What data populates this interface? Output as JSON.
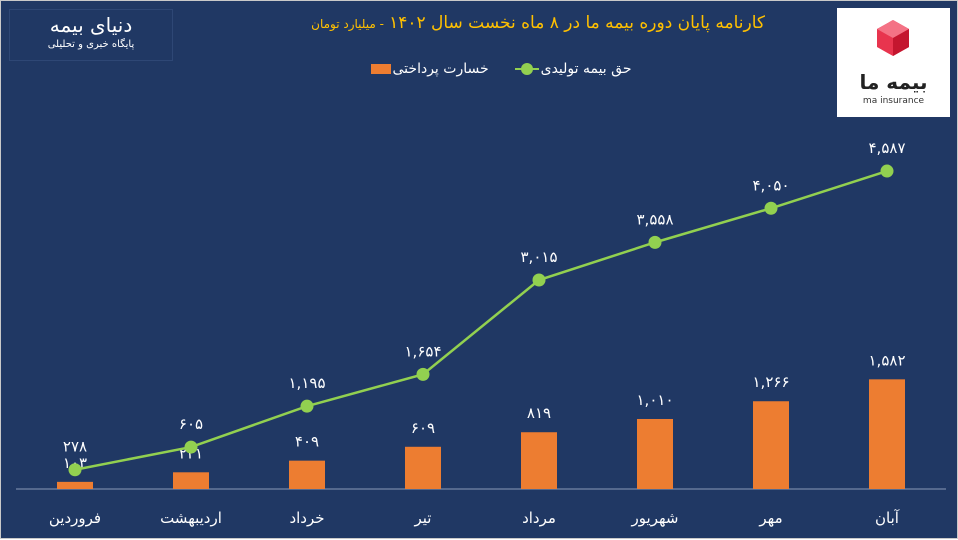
{
  "brand": {
    "name": "دنیای بیمه",
    "tagline": "پایگاه خبری و تحلیلی"
  },
  "logo": {
    "name_fa": "بیمه ما",
    "name_en": "ma insurance"
  },
  "colors": {
    "background": "#203864",
    "line": "#92d050",
    "bar": "#ed7d31",
    "title": "#ffc000"
  },
  "chart_data": {
    "type": "bar+line",
    "title": "کارنامه پایان دوره بیمه ما در ۸ ماه نخست سال ۱۴۰۲",
    "unit": "- میلیارد تومان",
    "categories": [
      "فروردین",
      "اردیبهشت",
      "خرداد",
      "تیر",
      "مرداد",
      "شهریور",
      "مهر",
      "آبان"
    ],
    "series": [
      {
        "name": "حق بیمه تولیدی",
        "type": "line",
        "values": [
          278,
          605,
          1195,
          1654,
          3015,
          3558,
          4050,
          4587
        ]
      },
      {
        "name": "خسارت پرداختی",
        "type": "bar",
        "values": [
          103,
          241,
          409,
          609,
          819,
          1010,
          1266,
          1582
        ]
      }
    ],
    "ylim": [
      0,
      7040
    ],
    "grid": false,
    "legend_position": "top"
  }
}
